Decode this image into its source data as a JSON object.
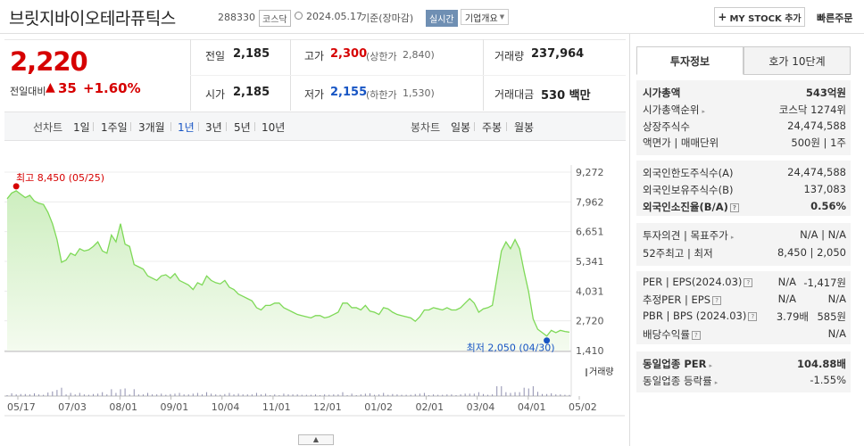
{
  "header": {
    "title": "브릿지바이오테라퓨틱스",
    "code": "288330",
    "market": "코스닥",
    "date": "2024.05.17",
    "date_note": "기준(장마감)",
    "realtime": "실시간",
    "company_info": "기업개요",
    "mystock": "MY STOCK 추가",
    "quick_order": "빠른주문"
  },
  "price": {
    "current": "2,220",
    "change_label": "전일대비",
    "change": "35",
    "change_pct": "+1.60%"
  },
  "quote": {
    "prev_label": "전일",
    "prev": "2,185",
    "high_label": "고가",
    "high": "2,300",
    "upper_label": "(상한가",
    "upper": "2,840)",
    "volume_label": "거래량",
    "volume": "237,964",
    "open_label": "시가",
    "open": "2,185",
    "low_label": "저가",
    "low": "2,155",
    "lower_label": "(하한가",
    "lower": "1,530)",
    "amount_label": "거래대금",
    "amount": "530 백만"
  },
  "periods": {
    "line_label": "선차트",
    "line": [
      "1일",
      "1주일",
      "3개월",
      "1년",
      "3년",
      "5년",
      "10년"
    ],
    "active": "1년",
    "candle_label": "봉차트",
    "candle": [
      "일봉",
      "주봉",
      "월봉"
    ]
  },
  "chart_data": {
    "type": "area",
    "color": "#7ed957",
    "y_ticks": [
      "9,272",
      "7,962",
      "6,651",
      "5,341",
      "4,031",
      "2,720",
      "1,410"
    ],
    "ylim": [
      1410,
      9272
    ],
    "x_ticks": [
      "05/17",
      "07/03",
      "08/01",
      "09/01",
      "10/04",
      "11/01",
      "12/01",
      "01/02",
      "02/01",
      "03/04",
      "04/01",
      "05/02"
    ],
    "high_annotation": "최고 8,450 (05/25)",
    "low_annotation": "최저 2,050 (04/30)",
    "volume_legend": "거래량",
    "values": [
      8100,
      8350,
      8450,
      8300,
      8150,
      8250,
      8000,
      7900,
      7850,
      7500,
      7000,
      6300,
      5300,
      5400,
      5700,
      5600,
      5900,
      5800,
      5850,
      6000,
      6200,
      5800,
      5700,
      6500,
      6200,
      7000,
      6100,
      6000,
      5200,
      5100,
      5000,
      4700,
      4600,
      4500,
      4700,
      4750,
      4600,
      4800,
      4500,
      4400,
      4300,
      4100,
      4400,
      4300,
      4700,
      4500,
      4400,
      4350,
      4500,
      4200,
      4100,
      3900,
      3800,
      3700,
      3600,
      3300,
      3200,
      3400,
      3400,
      3500,
      3500,
      3300,
      3200,
      3100,
      3000,
      2950,
      2900,
      2850,
      2950,
      2950,
      2850,
      2900,
      3000,
      3100,
      3500,
      3500,
      3300,
      3300,
      3200,
      3400,
      3150,
      3100,
      3000,
      3300,
      3250,
      3100,
      3000,
      2950,
      2900,
      2850,
      2700,
      2900,
      3200,
      3200,
      3300,
      3250,
      3200,
      3300,
      3200,
      3200,
      3300,
      3500,
      3700,
      3500,
      3100,
      3250,
      3300,
      3400,
      4600,
      5800,
      6200,
      5900,
      6300,
      5900,
      4900,
      4000,
      2800,
      2350,
      2200,
      2050,
      2300,
      2200,
      2300,
      2250,
      2220
    ]
  },
  "right_panel": {
    "tabs": [
      "투자정보",
      "호가 10단계"
    ],
    "s1": [
      {
        "k": "시가총액",
        "v": "543억원",
        "bold": true
      },
      {
        "k": "시가총액순위",
        "v": "코스닥 1274위"
      },
      {
        "k": "상장주식수",
        "v": "24,474,588"
      },
      {
        "k": "액면가 | 매매단위",
        "v": "500원 | 1주"
      }
    ],
    "s2": [
      {
        "k": "외국인한도주식수(A)",
        "v": "24,474,588"
      },
      {
        "k": "외국인보유주식수(B)",
        "v": "137,083"
      },
      {
        "k": "외국인소진율(B/A)",
        "v": "0.56%",
        "bold": true
      }
    ],
    "s3": [
      {
        "k": "투자의견 | 목표주가",
        "v": "N/A | N/A"
      },
      {
        "k": "52주최고 | 최저",
        "v": "8,450 | 2,050"
      }
    ],
    "s4": [
      {
        "k": "PER | EPS(2024.03)",
        "v1": "N/A",
        "v2": "-1,417원"
      },
      {
        "k": "추정PER | EPS",
        "v1": "N/A",
        "v2": "N/A"
      },
      {
        "k": "PBR | BPS (2024.03)",
        "v1": "3.79배",
        "v2": "585원"
      },
      {
        "k": "배당수익률",
        "v1": "",
        "v2": "N/A"
      }
    ],
    "s5": [
      {
        "k": "동일업종 PER",
        "v": "104.88배",
        "bold": true
      },
      {
        "k": "동일업종 등락률",
        "v": "-1.55%",
        "blue": true
      }
    ]
  }
}
